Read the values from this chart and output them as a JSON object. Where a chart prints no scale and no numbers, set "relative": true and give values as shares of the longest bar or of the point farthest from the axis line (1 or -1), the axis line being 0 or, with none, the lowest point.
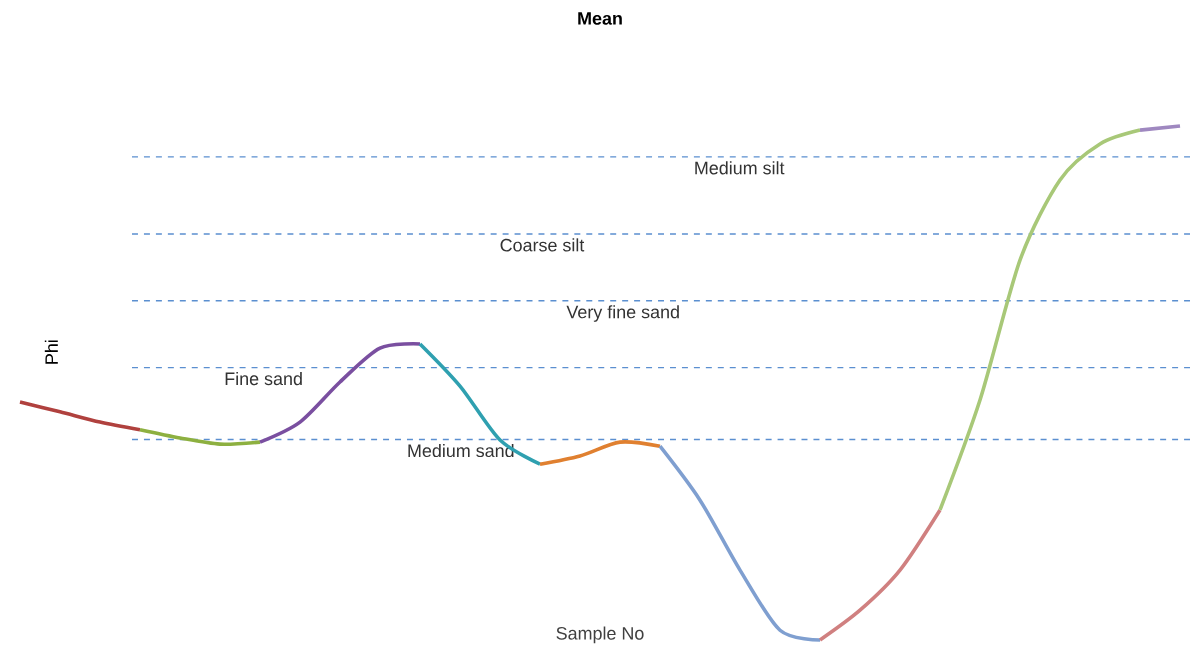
{
  "chart_data": {
    "type": "line",
    "title": "Mean",
    "xlabel": "Sample No",
    "ylabel": "Phi",
    "relative": true,
    "categories": [
      null,
      null,
      null,
      null,
      null,
      null,
      null,
      null,
      null,
      null,
      null,
      null,
      null,
      null,
      null,
      null,
      null,
      null,
      null,
      null,
      null,
      null,
      null,
      null,
      null,
      null,
      null,
      null,
      null,
      null
    ],
    "series": [
      {
        "color": "#b0413e",
        "values": [
          0.463,
          0.444,
          0.424,
          0.409,
          null,
          null,
          null,
          null,
          null,
          null,
          null,
          null,
          null,
          null,
          null,
          null,
          null,
          null,
          null,
          null,
          null,
          null,
          null,
          null,
          null,
          null,
          null,
          null,
          null,
          null
        ]
      },
      {
        "color": "#8db040",
        "values": [
          null,
          null,
          null,
          0.409,
          0.393,
          0.381,
          0.385,
          null,
          null,
          null,
          null,
          null,
          null,
          null,
          null,
          null,
          null,
          null,
          null,
          null,
          null,
          null,
          null,
          null,
          null,
          null,
          null,
          null,
          null,
          null
        ]
      },
      {
        "color": "#7a4fa0",
        "values": [
          null,
          null,
          null,
          null,
          null,
          null,
          0.385,
          0.424,
          0.502,
          0.568,
          0.576,
          null,
          null,
          null,
          null,
          null,
          null,
          null,
          null,
          null,
          null,
          null,
          null,
          null,
          null,
          null,
          null,
          null,
          null,
          null
        ]
      },
      {
        "color": "#2fa0b0",
        "values": [
          null,
          null,
          null,
          null,
          null,
          null,
          null,
          null,
          null,
          null,
          0.576,
          0.494,
          0.389,
          0.342,
          null,
          null,
          null,
          null,
          null,
          null,
          null,
          null,
          null,
          null,
          null,
          null,
          null,
          null,
          null,
          null
        ]
      },
      {
        "color": "#e08030",
        "values": [
          null,
          null,
          null,
          null,
          null,
          null,
          null,
          null,
          null,
          null,
          null,
          null,
          null,
          0.342,
          0.358,
          0.385,
          0.377,
          null,
          null,
          null,
          null,
          null,
          null,
          null,
          null,
          null,
          null,
          null,
          null,
          null
        ]
      },
      {
        "color": "#7f9fd0",
        "values": [
          null,
          null,
          null,
          null,
          null,
          null,
          null,
          null,
          null,
          null,
          null,
          null,
          null,
          null,
          null,
          null,
          0.377,
          0.272,
          0.136,
          0.019,
          0,
          null,
          null,
          null,
          null,
          null,
          null,
          null,
          null,
          null
        ]
      },
      {
        "color": "#d08080",
        "values": [
          null,
          null,
          null,
          null,
          null,
          null,
          null,
          null,
          null,
          null,
          null,
          null,
          null,
          null,
          null,
          null,
          null,
          null,
          null,
          null,
          0,
          0.058,
          0.136,
          0.253,
          null,
          null,
          null,
          null,
          null,
          null
        ]
      },
      {
        "color": "#a8c878",
        "values": [
          null,
          null,
          null,
          null,
          null,
          null,
          null,
          null,
          null,
          null,
          null,
          null,
          null,
          null,
          null,
          null,
          null,
          null,
          null,
          null,
          null,
          null,
          null,
          0.253,
          0.467,
          0.739,
          0.895,
          0.965,
          0.992,
          null
        ]
      },
      {
        "color": "#9f88c0",
        "values": [
          null,
          null,
          null,
          null,
          null,
          null,
          null,
          null,
          null,
          null,
          null,
          null,
          null,
          null,
          null,
          null,
          null,
          null,
          null,
          null,
          null,
          null,
          null,
          null,
          null,
          null,
          null,
          null,
          0.992,
          1
        ]
      }
    ],
    "ref_lines": [
      {
        "axis": "y",
        "value": 0.94,
        "label": "Medium silt",
        "color": "#5b8fd0",
        "line_style": "dashed"
      },
      {
        "axis": "y",
        "value": 0.79,
        "label": "Coarse silt",
        "color": "#5b8fd0",
        "line_style": "dashed"
      },
      {
        "axis": "y",
        "value": 0.66,
        "label": "Very fine sand",
        "color": "#5b8fd0",
        "line_style": "dashed"
      },
      {
        "axis": "y",
        "value": 0.53,
        "label": "Fine sand",
        "color": "#5b8fd0",
        "line_style": "dashed"
      },
      {
        "axis": "y",
        "value": 0.39,
        "label": "Medium sand",
        "color": "#5b8fd0",
        "line_style": "dashed"
      }
    ],
    "line_style": "solid"
  }
}
